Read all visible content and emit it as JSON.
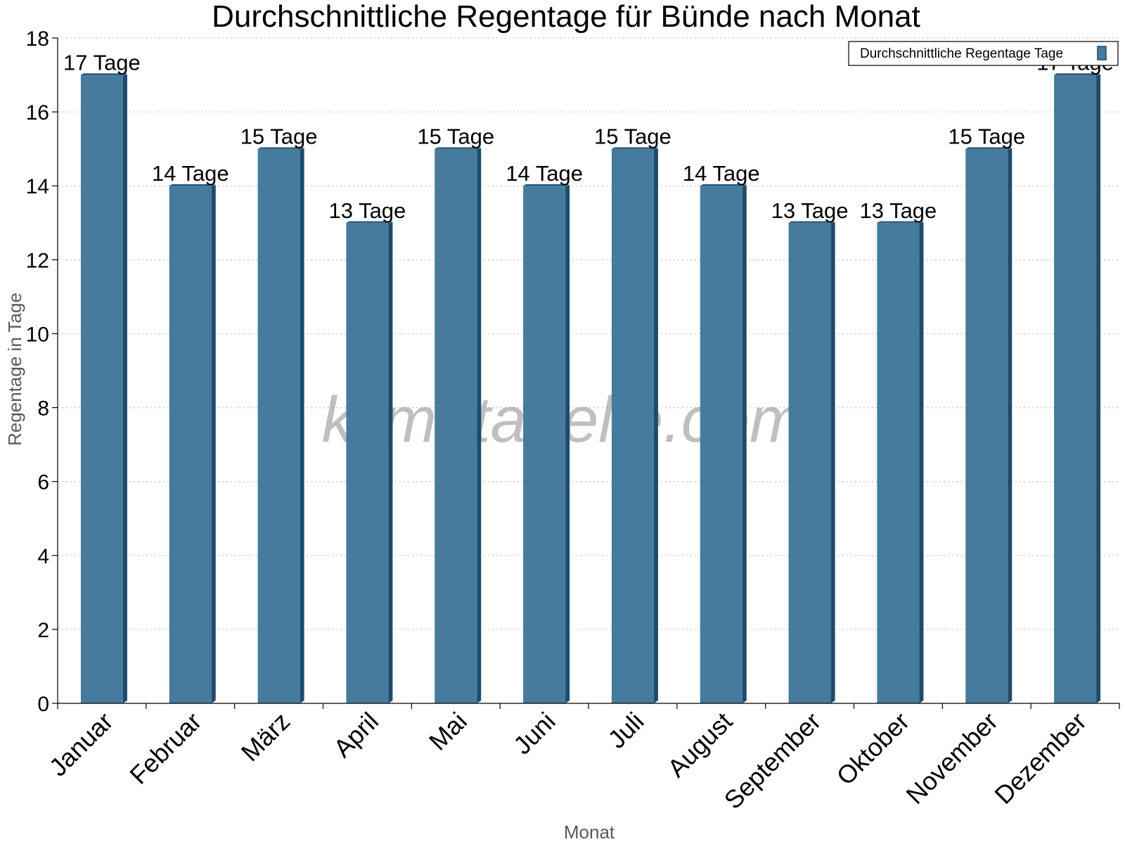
{
  "chart_data": {
    "type": "bar",
    "title": "Durchschnittliche Regentage für Bünde nach Monat",
    "xlabel": "Monat",
    "ylabel": "Regentage in Tage",
    "categories": [
      "Januar",
      "Februar",
      "März",
      "April",
      "Mai",
      "Juni",
      "Juli",
      "August",
      "September",
      "Oktober",
      "November",
      "Dezember"
    ],
    "series": [
      {
        "name": "Durchschnittliche Regentage Tage",
        "values": [
          17,
          14,
          15,
          13,
          15,
          14,
          15,
          14,
          13,
          13,
          15,
          17
        ]
      }
    ],
    "data_labels": [
      "17 Tage",
      "14 Tage",
      "15 Tage",
      "13 Tage",
      "15 Tage",
      "14 Tage",
      "15 Tage",
      "14 Tage",
      "13 Tage",
      "13 Tage",
      "15 Tage",
      "17 Tage"
    ],
    "ylim": [
      0,
      18
    ],
    "yticks": [
      0,
      2,
      4,
      6,
      8,
      10,
      12,
      14,
      16,
      18
    ],
    "grid": "horizontal dotted",
    "legend_position": "top-right",
    "colors": {
      "bar_face": "#467b9e",
      "bar_side": "#1d4b6c",
      "bar_top": "#1d4b6c",
      "grid": "#c8c8c8",
      "axis": "#000000"
    }
  },
  "watermark": "klimatabelle.com"
}
